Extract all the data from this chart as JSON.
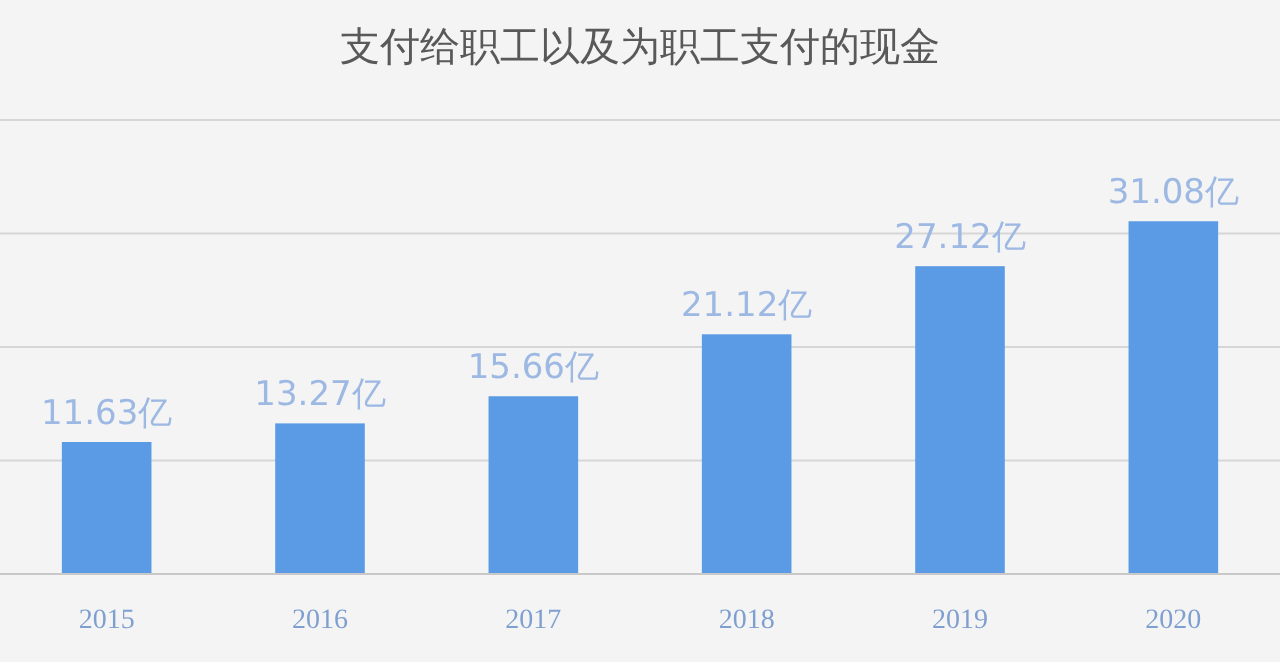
{
  "chart_data": {
    "type": "bar",
    "title": "支付给职工以及为职工支付的现金",
    "categories": [
      "2015",
      "2016",
      "2017",
      "2018",
      "2019",
      "2020"
    ],
    "values": [
      11.63,
      13.27,
      15.66,
      21.12,
      27.12,
      31.08
    ],
    "value_labels": [
      "11.63亿",
      "13.27亿",
      "15.66亿",
      "21.12亿",
      "27.12亿",
      "31.08亿"
    ],
    "color": "#5b9be6",
    "ylim": [
      0,
      40
    ],
    "yticks": [
      {
        "value": 0,
        "label": null
      },
      {
        "value": 10,
        "label": null
      },
      {
        "value": 20,
        "label": null
      },
      {
        "value": 30,
        "label": null
      },
      {
        "value": 40,
        "label": null
      }
    ],
    "grid": "y"
  }
}
